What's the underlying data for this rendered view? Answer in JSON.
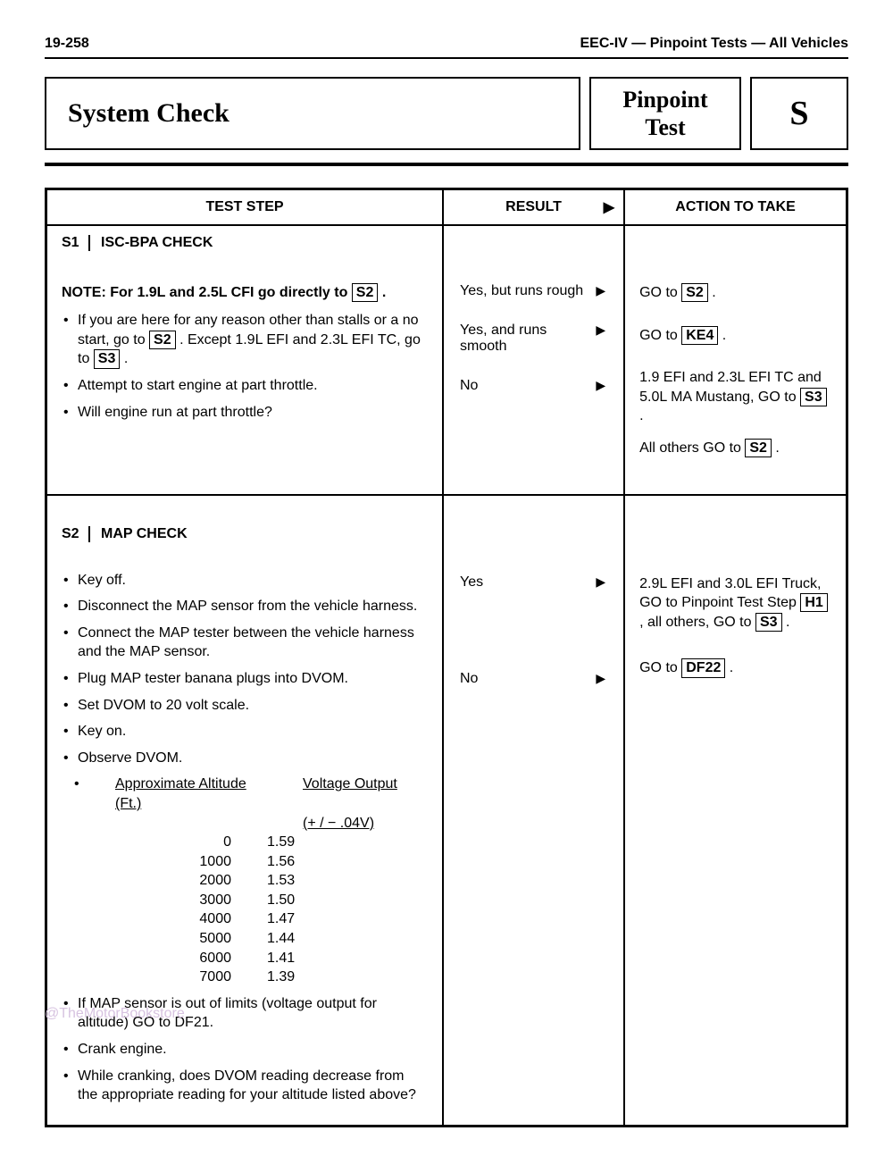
{
  "header": {
    "page_no": "19-258",
    "title_right": "EEC-IV — Pinpoint Tests — All Vehicles"
  },
  "title": {
    "main": "System Check",
    "pinpoint_line1": "Pinpoint",
    "pinpoint_line2": "Test",
    "code": "S"
  },
  "columns": {
    "step": "TEST STEP",
    "result": "RESULT",
    "action": "ACTION TO TAKE"
  },
  "s1": {
    "code": "S1",
    "name": "ISC-BPA CHECK",
    "note_pre": "NOTE: For 1.9L and 2.5L CFI go directly to ",
    "note_ref": "S2",
    "note_post": " .",
    "b1_pre": "If you are here for any reason other than stalls or a no start, go to ",
    "b1_ref1": "S2",
    "b1_mid": " . Except 1.9L EFI and 2.3L EFI TC, go to ",
    "b1_ref2": "S3",
    "b1_post": " .",
    "b2": "Attempt to start engine at part throttle.",
    "b3": "Will engine run at part throttle?",
    "r1": "Yes, but runs rough",
    "r2": "Yes, and runs smooth",
    "r3": "No",
    "a1_pre": "GO to ",
    "a1_ref": "S2",
    "a1_post": " .",
    "a2_pre": "GO to ",
    "a2_ref": "KE4",
    "a2_post": " .",
    "a3_pre": "1.9 EFI and 2.3L EFI TC and 5.0L MA Mustang, GO to ",
    "a3_ref": "S3",
    "a3_post": " .",
    "a4_pre": "All others GO to ",
    "a4_ref": "S2",
    "a4_post": " ."
  },
  "s2": {
    "code": "S2",
    "name": "MAP CHECK",
    "b1": "Key off.",
    "b2": "Disconnect the MAP sensor from the vehicle harness.",
    "b3": "Connect the MAP tester between the vehicle harness and the MAP sensor.",
    "b4": "Plug MAP tester banana plugs into DVOM.",
    "b5": "Set DVOM to 20 volt scale.",
    "b6": "Key on.",
    "b7": "Observe DVOM.",
    "alt_hdr1": "Approximate Altitude (Ft.)",
    "alt_hdr2": "Voltage Output",
    "alt_hdr2b": "(+ / − .04V)",
    "rows": [
      {
        "a": "0",
        "v": "1.59"
      },
      {
        "a": "1000",
        "v": "1.56"
      },
      {
        "a": "2000",
        "v": "1.53"
      },
      {
        "a": "3000",
        "v": "1.50"
      },
      {
        "a": "4000",
        "v": "1.47"
      },
      {
        "a": "5000",
        "v": "1.44"
      },
      {
        "a": "6000",
        "v": "1.41"
      },
      {
        "a": "7000",
        "v": "1.39"
      }
    ],
    "b8": "If MAP sensor is out of limits (voltage output for altitude) GO to DF21.",
    "b9": "Crank engine.",
    "b10": "While cranking, does DVOM reading decrease from the appropriate reading for your altitude listed above?",
    "r1": "Yes",
    "r2": "No",
    "a1_pre": "2.9L EFI and 3.0L EFI Truck, GO to Pinpoint Test Step ",
    "a1_ref": "H1",
    "a1_mid": " , all others, GO to ",
    "a1_ref2": "S3",
    "a1_post": " .",
    "a2_pre": "GO to ",
    "a2_ref": "DF22",
    "a2_post": " ."
  },
  "watermark": "@TheMotorBookstore"
}
